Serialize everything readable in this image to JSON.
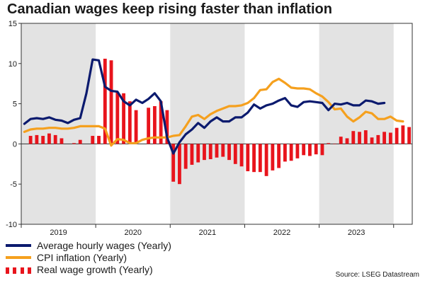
{
  "chart_data": {
    "type": "line+bar",
    "title": "Canadian wages keep rising faster than inflation",
    "source": "Source: LSEG Datastream",
    "ylim": [
      -10,
      15
    ],
    "yticks": [
      -10,
      -5,
      0,
      5,
      10,
      15
    ],
    "x_start": "2019-01",
    "months": 38,
    "years": [
      "2019",
      "2020",
      "2021",
      "2022",
      "2023"
    ],
    "shaded_years": [
      "2019",
      "2021",
      "2023"
    ],
    "colors": {
      "wages": "#0b1a6e",
      "cpi": "#f5a01e",
      "real": "#e8141c",
      "shade": "#e3e3e3"
    },
    "series": [
      {
        "name": "Average hourly wages (Yearly)",
        "kind": "line",
        "start": "2019-01",
        "values": [
          2.5,
          3.1,
          3.2,
          3.1,
          3.3,
          3.0,
          2.9,
          2.6,
          3.0,
          3.2,
          6.3,
          10.5,
          10.4,
          7.1,
          6.6,
          6.5,
          5.3,
          4.8,
          5.5,
          5.1,
          5.6,
          6.3,
          5.3,
          0.8,
          -1.2,
          0.2,
          1.2,
          1.8,
          2.6,
          2.0,
          2.8,
          3.3,
          2.8,
          2.8,
          3.3,
          3.3,
          3.9,
          4.9,
          4.4,
          4.8,
          5.0,
          5.4,
          5.7,
          4.8,
          4.6,
          5.2,
          5.3,
          5.2,
          5.1,
          4.2,
          5.0,
          4.9,
          5.1,
          4.8,
          4.8,
          5.4,
          5.3,
          5.0,
          5.1
        ]
      },
      {
        "name": "CPI inflation (Yearly)",
        "kind": "line",
        "start": "2019-01",
        "values": [
          1.5,
          1.8,
          1.9,
          1.9,
          2.0,
          2.0,
          1.9,
          1.9,
          2.0,
          2.2,
          2.2,
          2.2,
          2.2,
          1.9,
          -0.2,
          0.6,
          0.5,
          0.1,
          0.1,
          0.5,
          0.7,
          0.8,
          0.8,
          0.8,
          1.0,
          1.1,
          2.2,
          3.4,
          3.6,
          3.1,
          3.7,
          4.1,
          4.4,
          4.7,
          4.7,
          4.8,
          5.1,
          5.7,
          6.7,
          6.8,
          7.7,
          8.1,
          7.6,
          7.0,
          6.9,
          6.9,
          6.8,
          6.3,
          5.9,
          5.2,
          4.3,
          4.4,
          3.4,
          2.8,
          3.3,
          4.0,
          3.8,
          3.1,
          3.1,
          3.4,
          2.9,
          2.8
        ]
      },
      {
        "name": "Real wage growth (Yearly)",
        "kind": "bar",
        "start": "2019-02",
        "values": [
          1.0,
          1.1,
          1.0,
          1.3,
          1.1,
          0.7,
          0.1,
          0.5,
          1.0,
          1.0,
          10.6,
          10.4,
          6.4,
          6.3,
          5.3,
          4.2,
          4.5,
          4.7,
          5.3,
          4.2,
          -4.7,
          -5.0,
          -3.1,
          -2.6,
          -2.3,
          -2.0,
          -1.9,
          -1.7,
          -1.6,
          -2.0,
          -2.5,
          -2.8,
          -3.4,
          -3.5,
          -3.5,
          -4.0,
          -3.3,
          -3.0,
          -2.2,
          -2.1,
          -1.8,
          -1.4,
          -1.5,
          -1.3,
          -1.4,
          0.1,
          0.0,
          0.9,
          0.7,
          1.6,
          1.5,
          1.7,
          0.8,
          1.1,
          1.5,
          1.4,
          2.0,
          2.3,
          2.1
        ],
        "bar_months": [
          "2019-02",
          "2019-03",
          "2019-04",
          "2019-05",
          "2019-06",
          "2019-07",
          "2019-09",
          "2019-10",
          "2019-12",
          "2020-01",
          "2020-02",
          "2020-03",
          "2020-04",
          "2020-05",
          "2020-06",
          "2020-07",
          "2020-09",
          "2020-10",
          "2020-11",
          "2020-12",
          "2021-01",
          "2021-02",
          "2021-03",
          "2021-04",
          "2021-05",
          "2021-06",
          "2021-07",
          "2021-08",
          "2021-09",
          "2021-10",
          "2021-11",
          "2021-12",
          "2022-01",
          "2022-02",
          "2022-03",
          "2022-04",
          "2022-05",
          "2022-06",
          "2022-07",
          "2022-08",
          "2022-09",
          "2022-10",
          "2022-11",
          "2022-12",
          "2023-01",
          "2023-02",
          "2023-03",
          "2023-04",
          "2023-05",
          "2023-06",
          "2023-07",
          "2023-08",
          "2023-09",
          "2023-10",
          "2023-11",
          "2023-12",
          "2024-01",
          "2024-02",
          "2024-03"
        ]
      }
    ],
    "legend": [
      "Average hourly wages (Yearly)",
      "CPI inflation (Yearly)",
      "Real wage growth (Yearly)"
    ]
  }
}
